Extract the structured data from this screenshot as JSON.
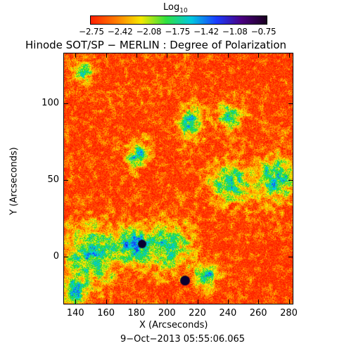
{
  "colorbar": {
    "title": "Log",
    "title_sub": "10",
    "tick_labels": [
      "−2.75",
      "−2.42",
      "−2.08",
      "−1.75",
      "−1.42",
      "−1.08",
      "−0.75"
    ],
    "colors": [
      "#ff2000",
      "#ff7a00",
      "#f5e800",
      "#30e040",
      "#00c8e0",
      "#1a3cff",
      "#4a0080",
      "#1a0020"
    ]
  },
  "title": "Hinode SOT/SP − MERLIN : Degree of Polarization",
  "axes": {
    "x_label": "X (Arcseconds)",
    "y_label": "Y (Arcseconds)",
    "x_ticks": [
      "140",
      "160",
      "180",
      "200",
      "220",
      "240",
      "260",
      "280"
    ],
    "y_ticks": [
      "100",
      "50",
      "0"
    ],
    "x_range": [
      132,
      283
    ],
    "y_range": [
      -31,
      133
    ]
  },
  "timestamp": "9−Oct−2013 05:55:06.065"
}
